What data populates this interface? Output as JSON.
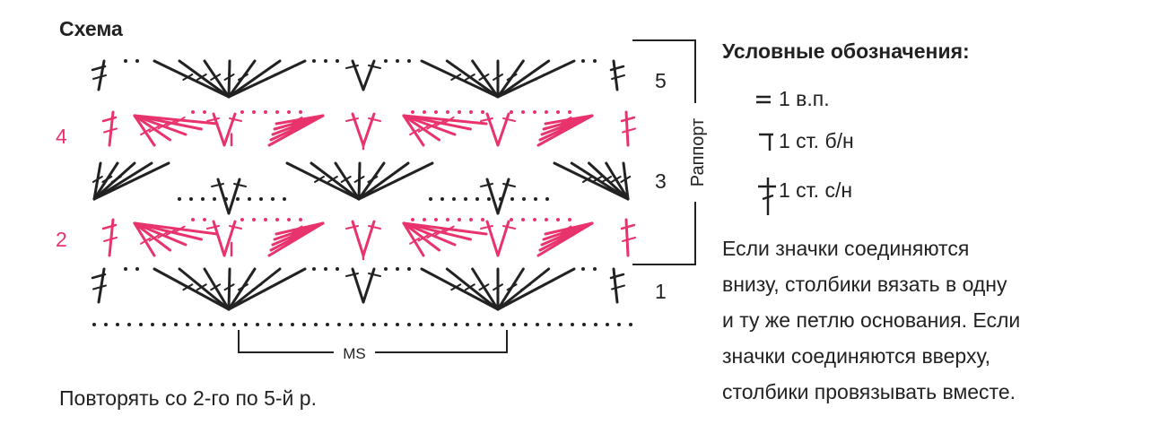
{
  "title": "Схема",
  "row_numbers": [
    "5",
    "4",
    "3",
    "2",
    "1"
  ],
  "repeat_label": "Раппорт",
  "ms_label": "MS",
  "caption": "Повторять со 2-го по 5-й р.",
  "legend": {
    "title": "Условные обозначения:",
    "items": [
      "1 в.п.",
      "1 ст. б/н",
      "1 ст. с/н"
    ]
  },
  "note_lines": [
    "Если значки соединяются",
    "внизу, столбики вязать в одну",
    "и ту же петлю основания. Если",
    "значки соединяются вверху,",
    "столбики провязывать вместе."
  ]
}
